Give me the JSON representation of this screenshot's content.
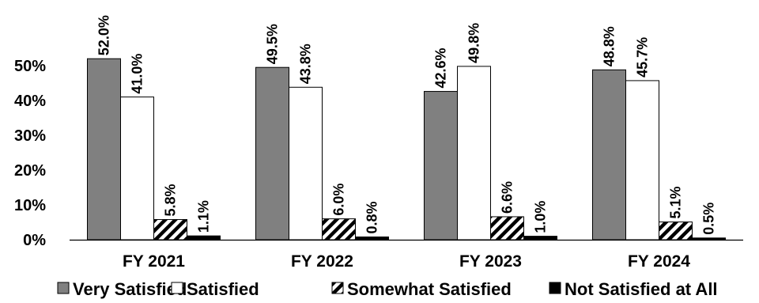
{
  "chart_data": {
    "type": "bar",
    "categories": [
      "FY 2021",
      "FY 2022",
      "FY 2023",
      "FY 2024"
    ],
    "series": [
      {
        "name": "Very Satisfied",
        "values": [
          52.0,
          49.5,
          42.6,
          48.8
        ],
        "labels": [
          "52.0%",
          "49.5%",
          "42.6%",
          "48.8%"
        ],
        "style": "solid",
        "color": "#808080"
      },
      {
        "name": "Satisfied",
        "values": [
          41.0,
          43.8,
          49.8,
          45.7
        ],
        "labels": [
          "41.0%",
          "43.8%",
          "49.8%",
          "45.7%"
        ],
        "style": "solid",
        "color": "#ffffff"
      },
      {
        "name": "Somewhat Satisfied",
        "values": [
          5.8,
          6.0,
          6.6,
          5.1
        ],
        "labels": [
          "5.8%",
          "6.0%",
          "6.6%",
          "5.1%"
        ],
        "style": "hatch",
        "color": "#000000"
      },
      {
        "name": "Not Satisfied at All",
        "values": [
          1.1,
          0.8,
          1.0,
          0.5
        ],
        "labels": [
          "1.1%",
          "0.8%",
          "1.0%",
          "0.5%"
        ],
        "style": "solid",
        "color": "#000000"
      }
    ],
    "yticks": [
      "0%",
      "10%",
      "20%",
      "30%",
      "40%",
      "50%"
    ],
    "ylim": [
      0,
      60
    ],
    "grid": false,
    "legend": "bottom"
  }
}
